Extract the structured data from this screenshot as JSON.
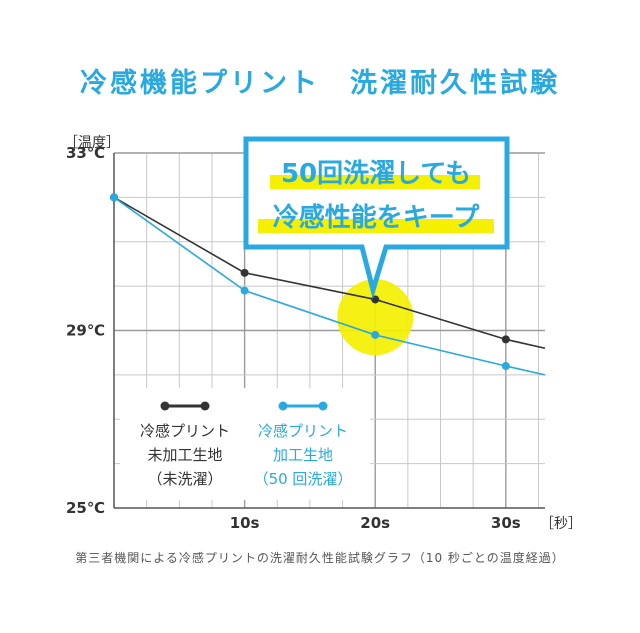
{
  "title": "冷感機能プリント　洗濯耐久性試験",
  "callout": {
    "line1": "50回洗濯しても",
    "line2": "冷感性能をキープ"
  },
  "caption": "第三者機関による冷感プリントの洗濯耐久性能試験グラフ（10 秒ごとの温度経過）",
  "colors": {
    "black_series": "#333333",
    "blue_series": "#29a9e0",
    "highlight": "#f4f000",
    "callout_border": "#29a9e0",
    "grid": "#c8c8c8"
  },
  "chart_data": {
    "type": "line",
    "ylabel": "［温度］",
    "xlabel": "［秒］",
    "xlim": [
      0,
      33
    ],
    "ylim": [
      25,
      33
    ],
    "x_ticks": [
      {
        "value": 10,
        "label": "10s"
      },
      {
        "value": 20,
        "label": "20s"
      },
      {
        "value": 30,
        "label": "30s"
      }
    ],
    "y_ticks": [
      {
        "value": 33,
        "label": "33℃"
      },
      {
        "value": 29,
        "label": "29℃"
      },
      {
        "value": 25,
        "label": "25℃"
      }
    ],
    "grid": true,
    "series": [
      {
        "key": "untreated",
        "name_lines": [
          "冷感プリント",
          "未加工生地",
          "（未洗濯）"
        ],
        "color": "#333333",
        "x": [
          0,
          10,
          20,
          30,
          33
        ],
        "y": [
          32.0,
          30.3,
          29.7,
          28.8,
          28.6
        ]
      },
      {
        "key": "washed",
        "name_lines": [
          "冷感プリント",
          "加工生地",
          "（50 回洗濯）"
        ],
        "color": "#29a9e0",
        "x": [
          0,
          10,
          20,
          30,
          33
        ],
        "y": [
          32.0,
          29.9,
          28.9,
          28.2,
          28.0
        ]
      }
    ],
    "highlight_at_x": 20
  }
}
